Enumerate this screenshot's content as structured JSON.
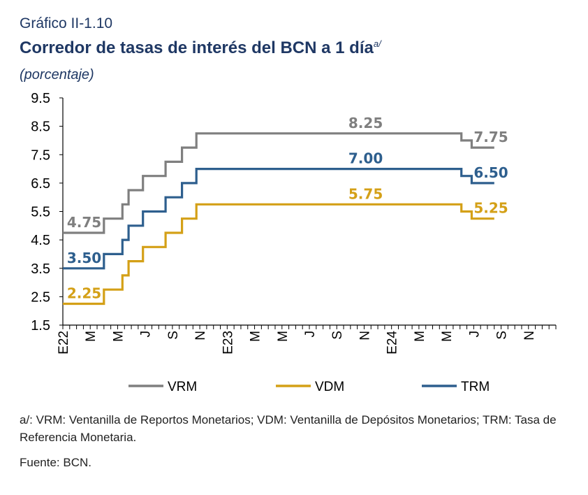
{
  "header": {
    "figure_number": "Gráfico II-1.10",
    "title": "Corredor de tasas de interés del BCN a 1 día",
    "title_superscript": "a/",
    "unit": "(porcentaje)"
  },
  "footer": {
    "note": "a/: VRM: Ventanilla de Reportos Monetarios; VDM: Ventanilla de Depósitos Monetarios; TRM: Tasa de Referencia Monetaria.",
    "source": "Fuente: BCN."
  },
  "chart_data": {
    "type": "line",
    "step": true,
    "x_ticks": [
      "E22",
      "M",
      "M",
      "J",
      "S",
      "N",
      "E23",
      "M",
      "M",
      "J",
      "S",
      "N",
      "E24",
      "M",
      "M",
      "J",
      "S",
      "N"
    ],
    "x_domain": [
      0,
      24
    ],
    "ylim": [
      1.5,
      9.5
    ],
    "y_ticks": [
      "9.5",
      "8.5",
      "7.5",
      "6.5",
      "5.5",
      "4.5",
      "3.5",
      "2.5",
      "1.5"
    ],
    "grid": false,
    "legend_position": "bottom",
    "series": [
      {
        "name": "VRM",
        "color": "#7f7f7f",
        "points": [
          [
            0,
            4.75
          ],
          [
            2,
            4.75
          ],
          [
            2,
            5.25
          ],
          [
            2.9,
            5.25
          ],
          [
            2.9,
            5.75
          ],
          [
            3.2,
            5.75
          ],
          [
            3.2,
            6.25
          ],
          [
            3.9,
            6.25
          ],
          [
            3.9,
            6.75
          ],
          [
            5,
            6.75
          ],
          [
            5,
            7.25
          ],
          [
            5.8,
            7.25
          ],
          [
            5.8,
            7.75
          ],
          [
            6.5,
            7.75
          ],
          [
            6.5,
            8.25
          ],
          [
            19.4,
            8.25
          ],
          [
            19.4,
            8.0
          ],
          [
            19.9,
            8.0
          ],
          [
            19.9,
            7.75
          ],
          [
            21,
            7.75
          ]
        ],
        "labels": [
          {
            "text": "4.75",
            "x": 0.2,
            "y": 4.75
          },
          {
            "text": "8.25",
            "x": 13.9,
            "y": 8.25
          },
          {
            "text": "7.75",
            "x": 20.0,
            "y": 7.75
          }
        ]
      },
      {
        "name": "TRM",
        "color": "#2e5f8e",
        "points": [
          [
            0,
            3.5
          ],
          [
            2,
            3.5
          ],
          [
            2,
            4.0
          ],
          [
            2.9,
            4.0
          ],
          [
            2.9,
            4.5
          ],
          [
            3.2,
            4.5
          ],
          [
            3.2,
            5.0
          ],
          [
            3.9,
            5.0
          ],
          [
            3.9,
            5.5
          ],
          [
            5,
            5.5
          ],
          [
            5,
            6.0
          ],
          [
            5.8,
            6.0
          ],
          [
            5.8,
            6.5
          ],
          [
            6.5,
            6.5
          ],
          [
            6.5,
            7.0
          ],
          [
            19.4,
            7.0
          ],
          [
            19.4,
            6.75
          ],
          [
            19.9,
            6.75
          ],
          [
            19.9,
            6.5
          ],
          [
            21,
            6.5
          ]
        ],
        "labels": [
          {
            "text": "3.50",
            "x": 0.2,
            "y": 3.5
          },
          {
            "text": "7.00",
            "x": 13.9,
            "y": 7.0
          },
          {
            "text": "6.50",
            "x": 20.0,
            "y": 6.5
          }
        ]
      },
      {
        "name": "VDM",
        "color": "#d4a017",
        "points": [
          [
            0,
            2.25
          ],
          [
            2,
            2.25
          ],
          [
            2,
            2.75
          ],
          [
            2.9,
            2.75
          ],
          [
            2.9,
            3.25
          ],
          [
            3.2,
            3.25
          ],
          [
            3.2,
            3.75
          ],
          [
            3.9,
            3.75
          ],
          [
            3.9,
            4.25
          ],
          [
            5,
            4.25
          ],
          [
            5,
            4.75
          ],
          [
            5.8,
            4.75
          ],
          [
            5.8,
            5.25
          ],
          [
            6.5,
            5.25
          ],
          [
            6.5,
            5.75
          ],
          [
            19.4,
            5.75
          ],
          [
            19.4,
            5.5
          ],
          [
            19.9,
            5.5
          ],
          [
            19.9,
            5.25
          ],
          [
            21,
            5.25
          ]
        ],
        "labels": [
          {
            "text": "2.25",
            "x": 0.2,
            "y": 2.25
          },
          {
            "text": "5.75",
            "x": 13.9,
            "y": 5.75
          },
          {
            "text": "5.25",
            "x": 20.0,
            "y": 5.25
          }
        ]
      }
    ],
    "legend_order": [
      "VRM",
      "VDM",
      "TRM"
    ]
  }
}
